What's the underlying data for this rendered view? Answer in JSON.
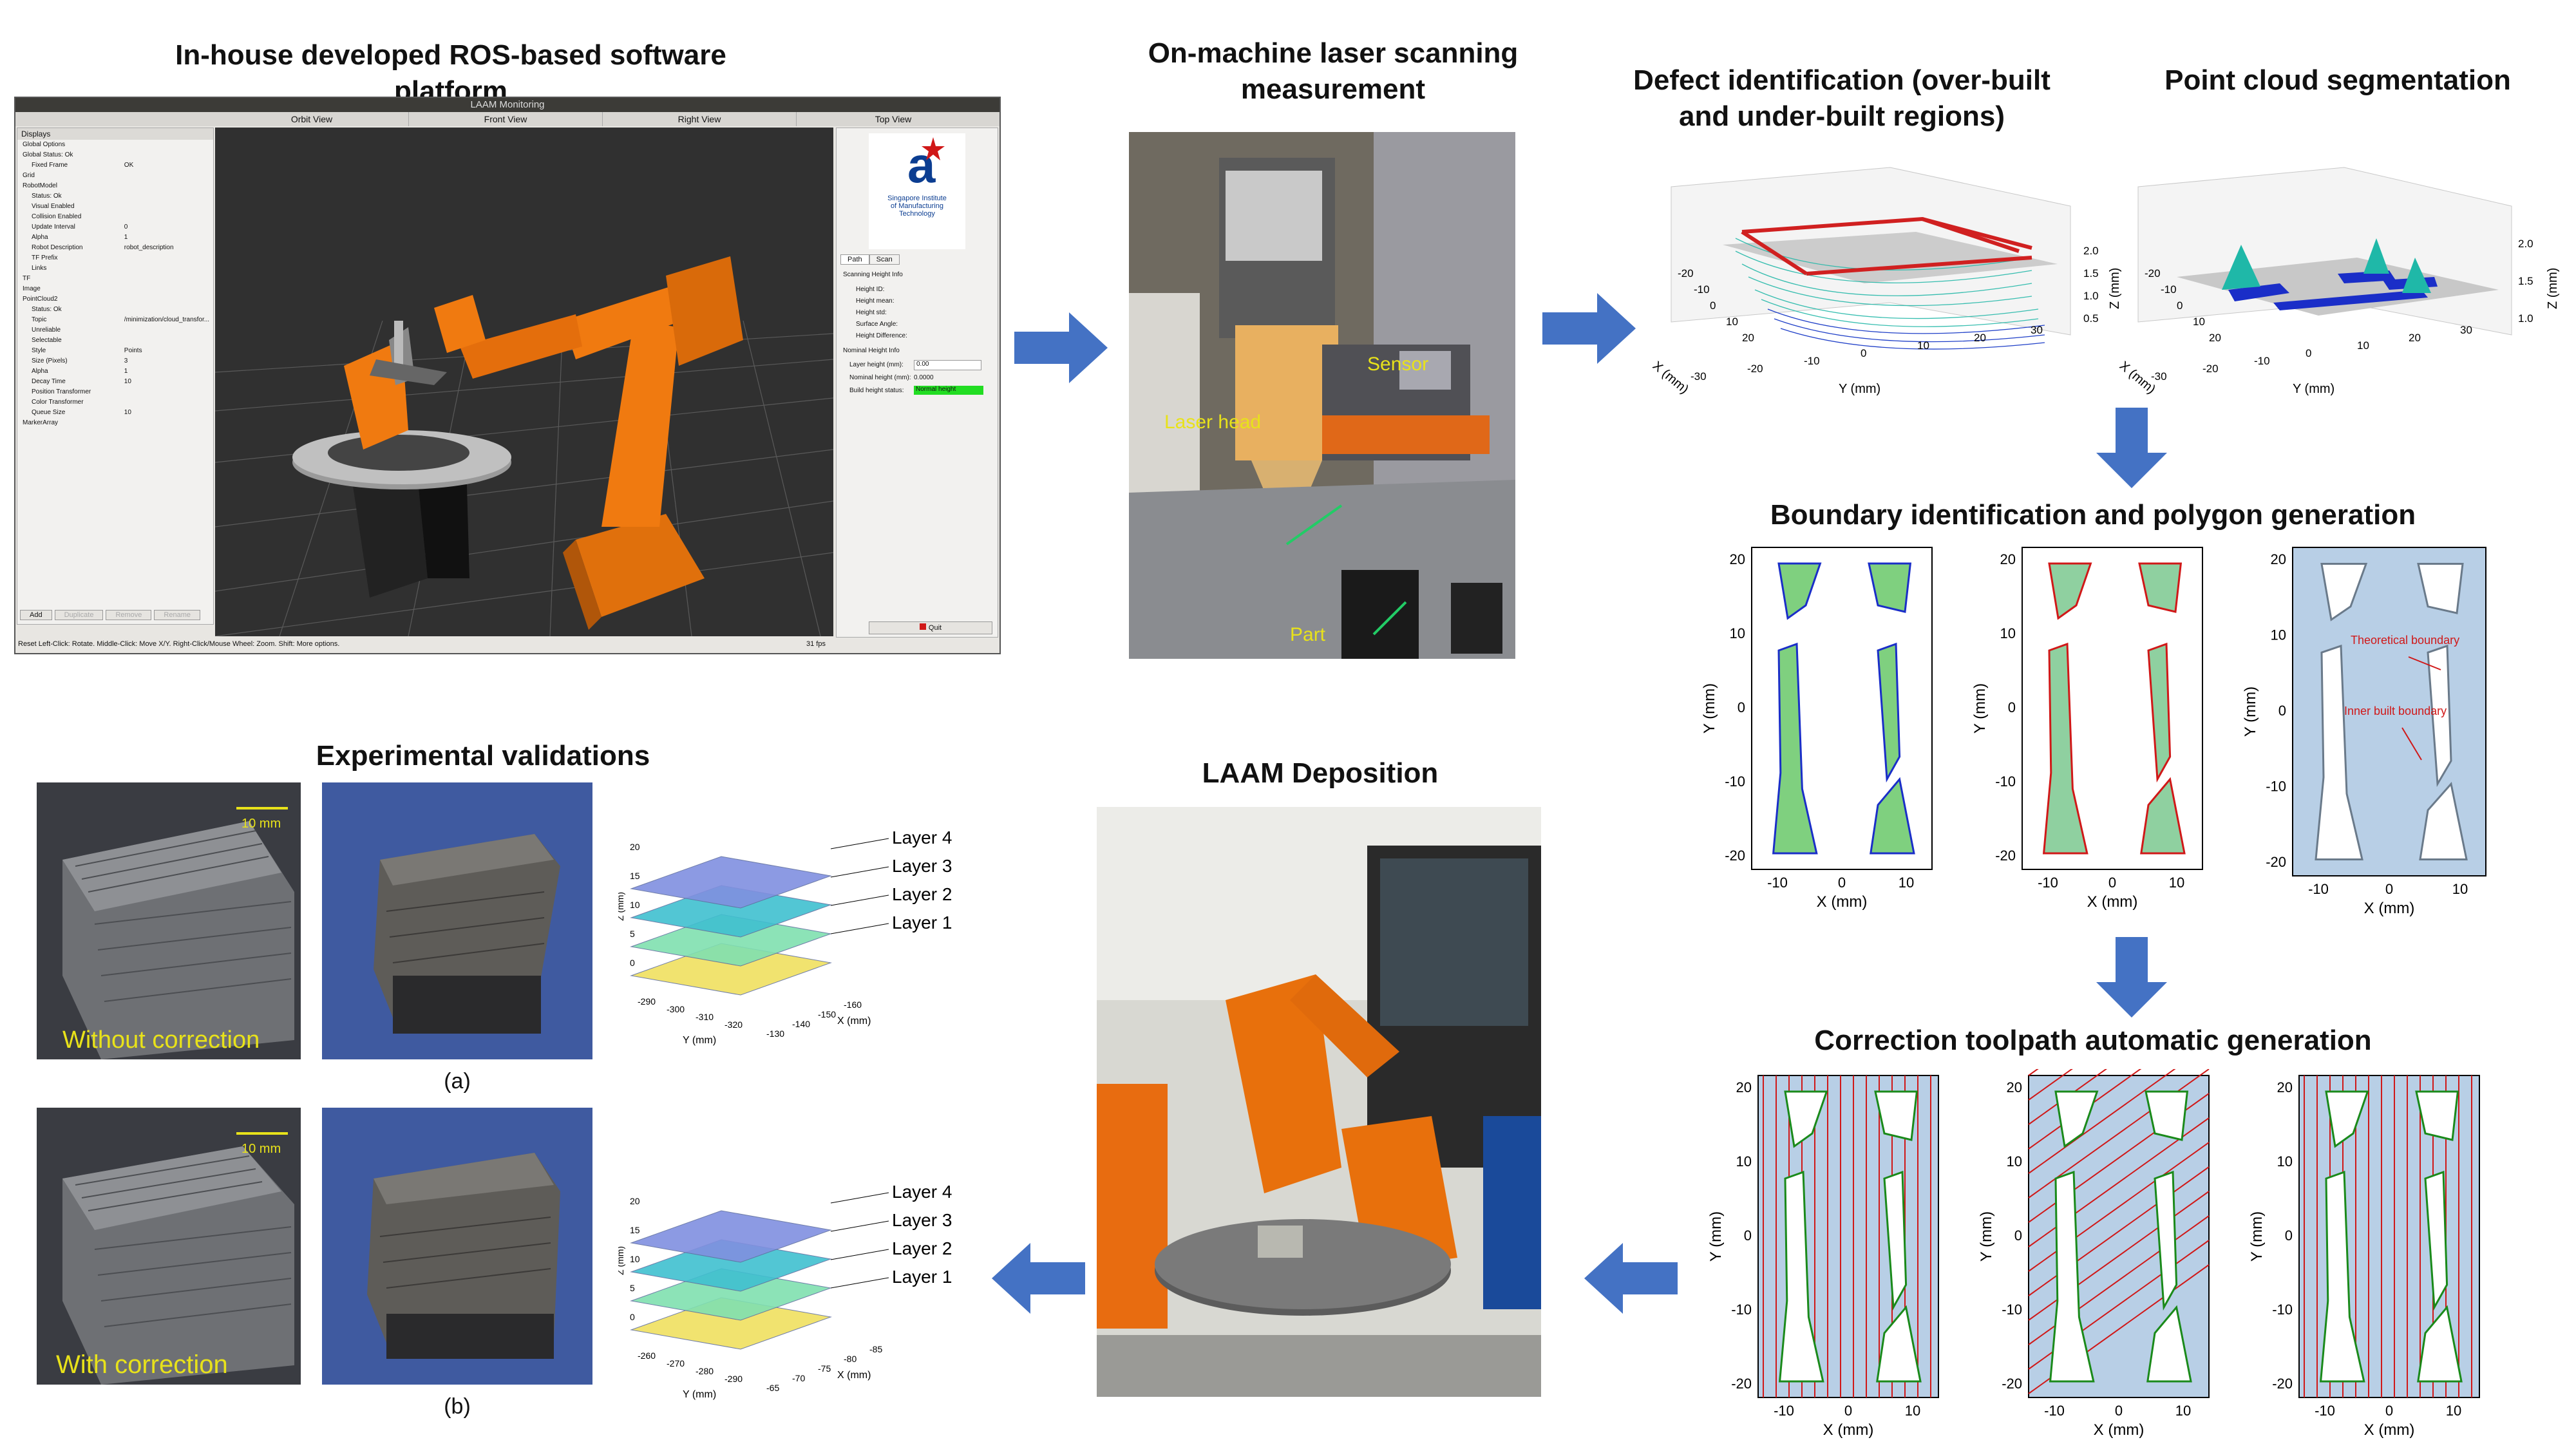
{
  "titles": {
    "software": "In-house developed ROS-based software platform",
    "scan": "On-machine laser scanning measurement",
    "defect": "Defect identification (over-built and under-built regions)",
    "segmentation": "Point cloud segmentation",
    "boundary": "Boundary identification and polygon generation",
    "toolpath": "Correction toolpath automatic generation",
    "deposition": "LAAM Deposition",
    "validation": "Experimental validations"
  },
  "software_ui": {
    "window_title": "LAAM Monitoring",
    "views": [
      "Orbit View",
      "Front View",
      "Right View",
      "Top View"
    ],
    "displays_header": "Displays",
    "tree_items": [
      "Global Options",
      "Global Status: Ok",
      "Fixed Frame",
      "Grid",
      "RobotModel",
      "Status: Ok",
      "Visual Enabled",
      "Collision Enabled",
      "Update Interval",
      "Alpha",
      "Robot Description",
      "TF Prefix",
      "Links",
      "TF",
      "Image",
      "PointCloud2",
      "Status: Ok",
      "Topic",
      "Unreliable",
      "Selectable",
      "Style",
      "Size (Pixels)",
      "Alpha",
      "Decay Time",
      "Position Transformer",
      "Color Transformer",
      "Queue Size",
      "MarkerArray"
    ],
    "tree_values": [
      "",
      "",
      "OK",
      "",
      "",
      "",
      "",
      "",
      "0",
      "1",
      "robot_description",
      "",
      "",
      "",
      "",
      "",
      "",
      "/minimization/cloud_transfor...",
      "",
      "",
      "Points",
      "3",
      "1",
      "10",
      "",
      "",
      "10",
      ""
    ],
    "buttons": [
      "Add",
      "Duplicate",
      "Remove",
      "Rename"
    ],
    "status_bar": "Reset  Left-Click: Rotate. Middle-Click: Move X/Y. Right-Click/Mouse Wheel: Zoom. Shift: More options.",
    "fps": "31 fps",
    "logo_text": [
      "Singapore Institute",
      "of Manufacturing",
      "Technology"
    ],
    "tabs": [
      "Path",
      "Scan"
    ],
    "scan_info_title": "Scanning Height Info",
    "scan_info_rows": [
      "Height ID:",
      "Height mean:",
      "Height std:",
      "Surface Angle:",
      "Height Difference:"
    ],
    "nominal_title": "Nominal Height Info",
    "layer_height_label": "Layer height (mm):",
    "layer_height_value": "0.00",
    "nominal_height_label": "Nominal height (mm):",
    "nominal_height_value": "0.0000",
    "build_status_label": "Build height status:",
    "build_status_value": "Normal height",
    "quit_label": "Quit"
  },
  "scan_photo": {
    "label_sensor": "Sensor",
    "label_laser": "Laser head",
    "label_part": "Part"
  },
  "defect_plot": {
    "xlabel": "X (mm)",
    "ylabel": "Y (mm)",
    "zlabel": "Z (mm)",
    "x_ticks": [
      "-20",
      "-10",
      "0",
      "10",
      "20"
    ],
    "y_ticks": [
      "-30",
      "-20",
      "-10",
      "0",
      "10",
      "20",
      "30"
    ],
    "z_ticks": [
      "0.5",
      "1.0",
      "1.5",
      "2.0"
    ]
  },
  "segment_plot": {
    "xlabel": "X (mm)",
    "ylabel": "Y (mm)",
    "zlabel": "Z (mm)",
    "x_ticks": [
      "-20",
      "-10",
      "0",
      "10",
      "20"
    ],
    "y_ticks": [
      "-30",
      "-20",
      "-10",
      "0",
      "10",
      "20",
      "30"
    ],
    "z_ticks": [
      "1.0",
      "1.5",
      "2.0"
    ]
  },
  "boundary_plots": {
    "xlabel": "X (mm)",
    "ylabel": "Y (mm)",
    "x_ticks": [
      "-10",
      "0",
      "10"
    ],
    "y_ticks": [
      "20",
      "10",
      "0",
      "-10",
      "-20"
    ],
    "annotation_theoretical": "Theoretical boundary",
    "annotation_inner": "Inner built boundary"
  },
  "toolpath_plots": {
    "xlabel": "X (mm)",
    "ylabel": "Y (mm)",
    "x_ticks": [
      "-10",
      "0",
      "10"
    ],
    "y_ticks": [
      "20",
      "10",
      "0",
      "-10",
      "-20"
    ]
  },
  "validation": {
    "without_label": "Without correction",
    "with_label": "With correction",
    "scale_label": "10 mm",
    "caption_a": "(a)",
    "caption_b": "(b)",
    "layers": [
      "Layer 4",
      "Layer 3",
      "Layer 2",
      "Layer 1"
    ],
    "plot_a": {
      "ylabel": "Y (mm)",
      "xlabel": "X (mm)",
      "zlabel": "Z (mm)",
      "z_ticks": [
        "0",
        "5",
        "10",
        "15",
        "20"
      ],
      "y_ticks": [
        "-290",
        "-300",
        "-310",
        "-320"
      ],
      "x_ticks": [
        "-130",
        "-140",
        "-150",
        "-160"
      ]
    },
    "plot_b": {
      "ylabel": "Y (mm)",
      "xlabel": "X (mm)",
      "zlabel": "Z (mm)",
      "z_ticks": [
        "0",
        "5",
        "10",
        "15",
        "20"
      ],
      "y_ticks": [
        "-260",
        "-270",
        "-280",
        "-290"
      ],
      "x_ticks": [
        "-65",
        "-70",
        "-75",
        "-80",
        "-85"
      ]
    }
  },
  "colors": {
    "arrow": "#4472c4",
    "robot_orange": "#f07a10",
    "plot_bg": "#b8cfe6",
    "highlight_green": "#22dd22"
  }
}
